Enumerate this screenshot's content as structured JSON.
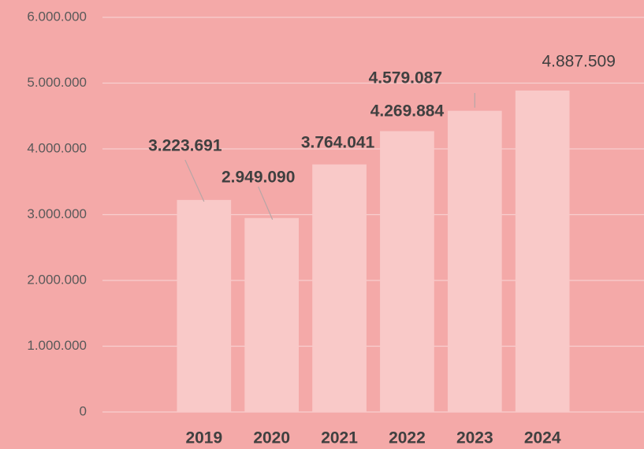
{
  "chart_data": {
    "type": "bar",
    "categories": [
      null,
      "2019",
      "2020",
      "2021",
      "2022",
      "2023",
      "2024",
      null
    ],
    "values": [
      null,
      3223691,
      2949090,
      3764041,
      4269884,
      4579087,
      4887509,
      null
    ],
    "value_labels": [
      null,
      "3.223.691",
      "2.949.090",
      "3.764.041",
      "4.269.884",
      "4.579.087",
      "4.887.509",
      null
    ],
    "color": "#f9c9c8",
    "ylim": [
      0,
      6000000
    ],
    "yticks": [
      0,
      {
        "value": 1000000,
        "label": "1.000.000"
      },
      {
        "value": 2000000,
        "label": "2.000.000"
      },
      {
        "value": 3000000,
        "label": "3.000.000"
      },
      {
        "value": 4000000,
        "label": "4.000.000"
      },
      {
        "value": 5000000,
        "label": "5.000.000"
      },
      {
        "value": 6000000,
        "label": "6.000.000"
      }
    ],
    "grid": true
  }
}
